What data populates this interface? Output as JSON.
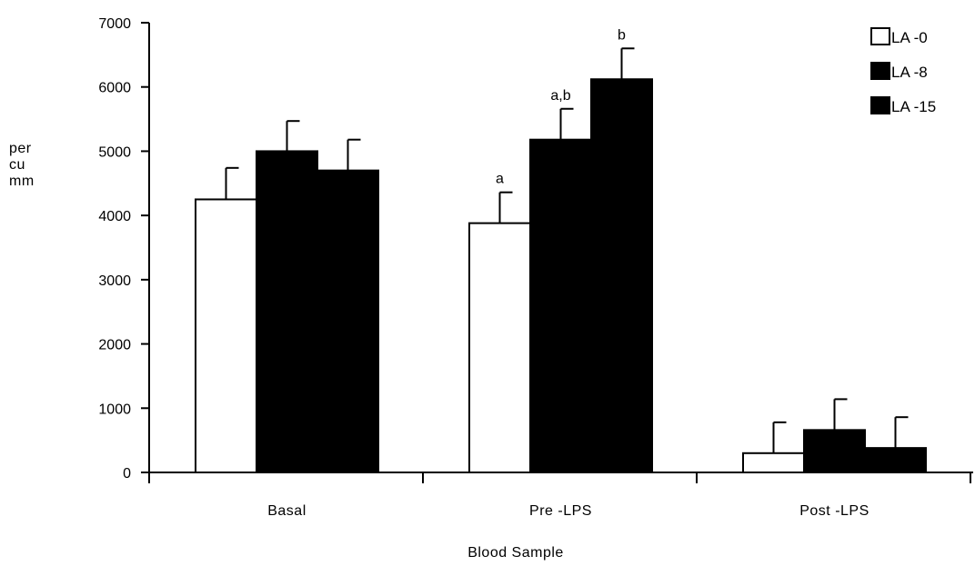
{
  "chart_data": {
    "type": "bar",
    "xlabel": "Blood Sample",
    "ylabel_lines": [
      "per",
      "cu",
      "mm"
    ],
    "ylim": [
      0,
      7000
    ],
    "yticks": [
      0,
      1000,
      2000,
      3000,
      4000,
      5000,
      6000,
      7000
    ],
    "categories": [
      "Basal",
      "Pre   -LPS",
      "Post   -LPS"
    ],
    "series": [
      {
        "name": "LA  -0",
        "color": "#ffffff",
        "values": [
          4250,
          3880,
          300
        ],
        "errors": [
          490,
          480,
          480
        ]
      },
      {
        "name": "LA  -8",
        "color": "#000000",
        "values": [
          5000,
          5180,
          660
        ],
        "errors": [
          470,
          480,
          480
        ]
      },
      {
        "name": "LA  -15",
        "color": "#000000",
        "values": [
          4700,
          6120,
          380
        ],
        "errors": [
          480,
          480,
          480
        ]
      }
    ],
    "annotations": [
      {
        "category": 1,
        "series": 0,
        "text": "a"
      },
      {
        "category": 1,
        "series": 1,
        "text": "a,b"
      },
      {
        "category": 1,
        "series": 2,
        "text": "b"
      }
    ],
    "legend_position": "top-right"
  }
}
